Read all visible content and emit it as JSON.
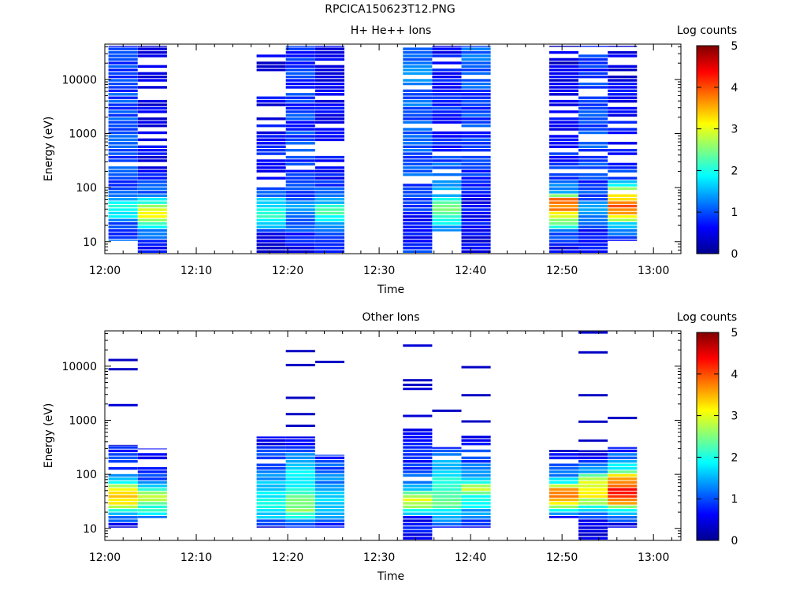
{
  "figure_title": "RPCICA150623T12.PNG",
  "chart_data": [
    {
      "type": "heatmap",
      "title": "H+ He++ Ions",
      "xlabel": "Time",
      "ylabel": "Energy (eV)",
      "y_scale": "log",
      "ylim": [
        6,
        45000
      ],
      "y_ticks": [
        10,
        100,
        1000,
        10000
      ],
      "y_ticklabels": [
        "10",
        "100",
        "1000",
        "10000"
      ],
      "x_ticklabels": [
        "12:00",
        "12:10",
        "12:20",
        "12:30",
        "12:40",
        "12:50",
        "13:00"
      ],
      "xlim_minutes": [
        0,
        63
      ],
      "colorbar": {
        "label": "Log counts",
        "min": 0,
        "max": 5,
        "ticks": [
          "0",
          "1",
          "2",
          "3",
          "4",
          "5"
        ]
      },
      "columns": [
        {
          "t0": 0.4,
          "t1": 3.6,
          "e_min": 10,
          "e_max": 42000,
          "profile": [
            [
              10,
              1.0
            ],
            [
              20,
              0.9
            ],
            [
              30,
              1.8
            ],
            [
              45,
              1.9
            ],
            [
              60,
              1.4
            ],
            [
              100,
              1.0
            ],
            [
              1000,
              1.0
            ],
            [
              10000,
              1.0
            ],
            [
              42000,
              0.9
            ]
          ],
          "gap": 0.05,
          "seed": 11
        },
        {
          "t0": 3.6,
          "t1": 6.8,
          "e_min": 6,
          "e_max": 42000,
          "profile": [
            [
              6,
              0.6
            ],
            [
              15,
              1.2
            ],
            [
              25,
              2.8
            ],
            [
              35,
              3.2
            ],
            [
              50,
              2.0
            ],
            [
              80,
              1.0
            ],
            [
              300,
              0.6
            ],
            [
              42000,
              0.5
            ]
          ],
          "gap": 0.35,
          "seed": 12
        },
        {
          "t0": 16.6,
          "t1": 19.8,
          "e_min": 6,
          "e_max": 42000,
          "profile": [
            [
              6,
              0.4
            ],
            [
              15,
              0.5
            ],
            [
              20,
              1.8
            ],
            [
              35,
              2.0
            ],
            [
              55,
              1.6
            ],
            [
              100,
              0.8
            ],
            [
              1000,
              0.6
            ],
            [
              42000,
              0.5
            ]
          ],
          "gap": 0.3,
          "seed": 21
        },
        {
          "t0": 19.8,
          "t1": 23.0,
          "e_min": 6,
          "e_max": 42000,
          "profile": [
            [
              6,
              0.6
            ],
            [
              15,
              0.9
            ],
            [
              30,
              1.4
            ],
            [
              50,
              1.2
            ],
            [
              100,
              0.9
            ],
            [
              1000,
              0.9
            ],
            [
              42000,
              0.8
            ]
          ],
          "gap": 0.06,
          "seed": 22
        },
        {
          "t0": 23.0,
          "t1": 26.2,
          "e_min": 6,
          "e_max": 42000,
          "profile": [
            [
              6,
              0.5
            ],
            [
              15,
              1.0
            ],
            [
              30,
              2.2
            ],
            [
              45,
              2.0
            ],
            [
              70,
              1.0
            ],
            [
              200,
              0.6
            ],
            [
              42000,
              0.5
            ]
          ],
          "gap": 0.28,
          "seed": 23
        },
        {
          "t0": 32.6,
          "t1": 35.8,
          "e_min": 6,
          "e_max": 42000,
          "profile": [
            [
              6,
              1.0
            ],
            [
              20,
              0.5
            ],
            [
              40,
              0.9
            ],
            [
              100,
              1.0
            ],
            [
              1000,
              1.0
            ],
            [
              10000,
              1.2
            ],
            [
              42000,
              1.2
            ]
          ],
          "gap": 0.08,
          "seed": 31
        },
        {
          "t0": 35.8,
          "t1": 39.0,
          "e_min": 15,
          "e_max": 42000,
          "profile": [
            [
              15,
              1.2
            ],
            [
              25,
              2.2
            ],
            [
              40,
              2.6
            ],
            [
              60,
              1.8
            ],
            [
              100,
              1.2
            ],
            [
              1000,
              0.8
            ],
            [
              42000,
              0.7
            ]
          ],
          "gap": 0.2,
          "seed": 32
        },
        {
          "t0": 39.0,
          "t1": 42.2,
          "e_min": 6,
          "e_max": 42000,
          "profile": [
            [
              6,
              0.5
            ],
            [
              20,
              0.6
            ],
            [
              60,
              0.6
            ],
            [
              100,
              0.8
            ],
            [
              1000,
              0.9
            ],
            [
              10000,
              1.0
            ],
            [
              42000,
              1.1
            ]
          ],
          "gap": 0.08,
          "seed": 33
        },
        {
          "t0": 48.6,
          "t1": 51.8,
          "e_min": 6,
          "e_max": 42000,
          "profile": [
            [
              6,
              0.4
            ],
            [
              15,
              1.2
            ],
            [
              25,
              2.8
            ],
            [
              40,
              3.7
            ],
            [
              60,
              3.8
            ],
            [
              80,
              1.6
            ],
            [
              120,
              1.0
            ],
            [
              1000,
              0.6
            ],
            [
              42000,
              0.4
            ]
          ],
          "gap": 0.3,
          "seed": 41
        },
        {
          "t0": 51.8,
          "t1": 55.0,
          "e_min": 6,
          "e_max": 42000,
          "profile": [
            [
              6,
              0.5
            ],
            [
              15,
              0.7
            ],
            [
              30,
              1.3
            ],
            [
              45,
              1.2
            ],
            [
              100,
              0.9
            ],
            [
              1000,
              1.0
            ],
            [
              42000,
              0.8
            ]
          ],
          "gap": 0.15,
          "seed": 42
        },
        {
          "t0": 55.0,
          "t1": 58.2,
          "e_min": 10,
          "e_max": 42000,
          "profile": [
            [
              10,
              0.5
            ],
            [
              20,
              1.6
            ],
            [
              30,
              3.3
            ],
            [
              45,
              4.1
            ],
            [
              60,
              3.5
            ],
            [
              90,
              2.5
            ],
            [
              150,
              1.0
            ],
            [
              1000,
              0.6
            ],
            [
              42000,
              0.5
            ]
          ],
          "gap": 0.3,
          "seed": 43
        }
      ]
    },
    {
      "type": "heatmap",
      "title": "Other Ions",
      "xlabel": "Time",
      "ylabel": "Energy (eV)",
      "y_scale": "log",
      "ylim": [
        6,
        45000
      ],
      "y_ticks": [
        10,
        100,
        1000,
        10000
      ],
      "y_ticklabels": [
        "10",
        "100",
        "1000",
        "10000"
      ],
      "x_ticklabels": [
        "12:00",
        "12:10",
        "12:20",
        "12:30",
        "12:40",
        "12:50",
        "13:00"
      ],
      "xlim_minutes": [
        0,
        63
      ],
      "colorbar": {
        "label": "Log counts",
        "min": 0,
        "max": 5,
        "ticks": [
          "0",
          "1",
          "2",
          "3",
          "4",
          "5"
        ]
      },
      "columns": [
        {
          "t0": 0.4,
          "t1": 3.6,
          "e_min": 10,
          "e_max": 350,
          "profile": [
            [
              10,
              0.4
            ],
            [
              18,
              1.6
            ],
            [
              28,
              3.0
            ],
            [
              45,
              3.3
            ],
            [
              70,
              2.0
            ],
            [
              120,
              1.0
            ],
            [
              350,
              0.6
            ]
          ],
          "gap": 0.1,
          "lines": [
            [
              1900,
              0.4
            ],
            [
              8800,
              0.3
            ],
            [
              13000,
              0.3
            ]
          ],
          "seed": 51
        },
        {
          "t0": 3.6,
          "t1": 6.8,
          "e_min": 15,
          "e_max": 300,
          "profile": [
            [
              15,
              1.2
            ],
            [
              25,
              2.3
            ],
            [
              40,
              2.8
            ],
            [
              60,
              1.6
            ],
            [
              100,
              0.7
            ],
            [
              300,
              0.5
            ]
          ],
          "gap": 0.3,
          "lines": [],
          "seed": 52
        },
        {
          "t0": 16.6,
          "t1": 19.8,
          "e_min": 10,
          "e_max": 500,
          "profile": [
            [
              10,
              0.5
            ],
            [
              15,
              1.4
            ],
            [
              25,
              2.0
            ],
            [
              45,
              1.9
            ],
            [
              80,
              1.5
            ],
            [
              150,
              1.0
            ],
            [
              500,
              0.5
            ]
          ],
          "gap": 0.1,
          "lines": [],
          "seed": 53
        },
        {
          "t0": 19.8,
          "t1": 23.0,
          "e_min": 10,
          "e_max": 500,
          "profile": [
            [
              10,
              0.6
            ],
            [
              20,
              2.4
            ],
            [
              30,
              2.6
            ],
            [
              50,
              2.0
            ],
            [
              100,
              1.7
            ],
            [
              200,
              1.4
            ],
            [
              500,
              0.6
            ]
          ],
          "gap": 0.06,
          "lines": [
            [
              790,
              0.3
            ],
            [
              1300,
              0.3
            ],
            [
              2600,
              0.3
            ],
            [
              10500,
              0.3
            ],
            [
              19000,
              0.3
            ]
          ],
          "seed": 54
        },
        {
          "t0": 23.0,
          "t1": 26.2,
          "e_min": 10,
          "e_max": 230,
          "profile": [
            [
              10,
              0.6
            ],
            [
              20,
              1.6
            ],
            [
              30,
              1.8
            ],
            [
              50,
              1.6
            ],
            [
              80,
              1.2
            ],
            [
              230,
              0.8
            ]
          ],
          "gap": 0.06,
          "lines": [
            [
              12000,
              0.3
            ]
          ],
          "seed": 55
        },
        {
          "t0": 32.6,
          "t1": 35.8,
          "e_min": 6,
          "e_max": 700,
          "profile": [
            [
              6,
              0.6
            ],
            [
              15,
              0.7
            ],
            [
              25,
              2.5
            ],
            [
              35,
              3.0
            ],
            [
              50,
              1.8
            ],
            [
              100,
              0.9
            ],
            [
              700,
              0.6
            ]
          ],
          "gap": 0.1,
          "lines": [
            [
              1200,
              0.4
            ],
            [
              3800,
              0.4
            ],
            [
              4500,
              0.3
            ],
            [
              5500,
              0.3
            ],
            [
              24000,
              0.4
            ]
          ],
          "seed": 56
        },
        {
          "t0": 35.8,
          "t1": 39.0,
          "e_min": 10,
          "e_max": 320,
          "profile": [
            [
              10,
              0.7
            ],
            [
              20,
              1.7
            ],
            [
              30,
              2.4
            ],
            [
              50,
              2.2
            ],
            [
              100,
              1.8
            ],
            [
              320,
              0.8
            ]
          ],
          "gap": 0.15,
          "lines": [
            [
              1500,
              0.3
            ]
          ],
          "seed": 57
        },
        {
          "t0": 39.0,
          "t1": 42.2,
          "e_min": 10,
          "e_max": 520,
          "profile": [
            [
              10,
              0.6
            ],
            [
              20,
              1.5
            ],
            [
              40,
              2.2
            ],
            [
              55,
              2.8
            ],
            [
              100,
              1.2
            ],
            [
              520,
              0.6
            ]
          ],
          "gap": 0.1,
          "lines": [
            [
              950,
              0.3
            ],
            [
              2900,
              0.3
            ],
            [
              9600,
              0.3
            ]
          ],
          "seed": 58
        },
        {
          "t0": 48.6,
          "t1": 51.8,
          "e_min": 15,
          "e_max": 260,
          "profile": [
            [
              15,
              0.6
            ],
            [
              25,
              2.6
            ],
            [
              35,
              3.6
            ],
            [
              50,
              3.9
            ],
            [
              70,
              1.8
            ],
            [
              120,
              1.0
            ],
            [
              260,
              0.8
            ]
          ],
          "gap": 0.3,
          "lines": [
            [
              270,
              0.3
            ]
          ],
          "seed": 59
        },
        {
          "t0": 51.8,
          "t1": 55.0,
          "e_min": 6,
          "e_max": 280,
          "profile": [
            [
              6,
              0.4
            ],
            [
              12,
              0.4
            ],
            [
              20,
              1.5
            ],
            [
              30,
              2.8
            ],
            [
              50,
              3.2
            ],
            [
              80,
              2.9
            ],
            [
              120,
              1.2
            ],
            [
              280,
              0.5
            ]
          ],
          "gap": 0.2,
          "lines": [
            [
              420,
              0.3
            ],
            [
              940,
              0.3
            ],
            [
              2900,
              0.3
            ],
            [
              18000,
              0.3
            ],
            [
              42000,
              0.3
            ]
          ],
          "seed": 60
        },
        {
          "t0": 55.0,
          "t1": 58.2,
          "e_min": 10,
          "e_max": 320,
          "profile": [
            [
              10,
              0.4
            ],
            [
              20,
              1.5
            ],
            [
              30,
              3.6
            ],
            [
              50,
              4.4
            ],
            [
              80,
              3.6
            ],
            [
              130,
              1.8
            ],
            [
              320,
              0.6
            ]
          ],
          "gap": 0.12,
          "lines": [
            [
              1100,
              0.3
            ]
          ],
          "seed": 61
        }
      ]
    }
  ]
}
